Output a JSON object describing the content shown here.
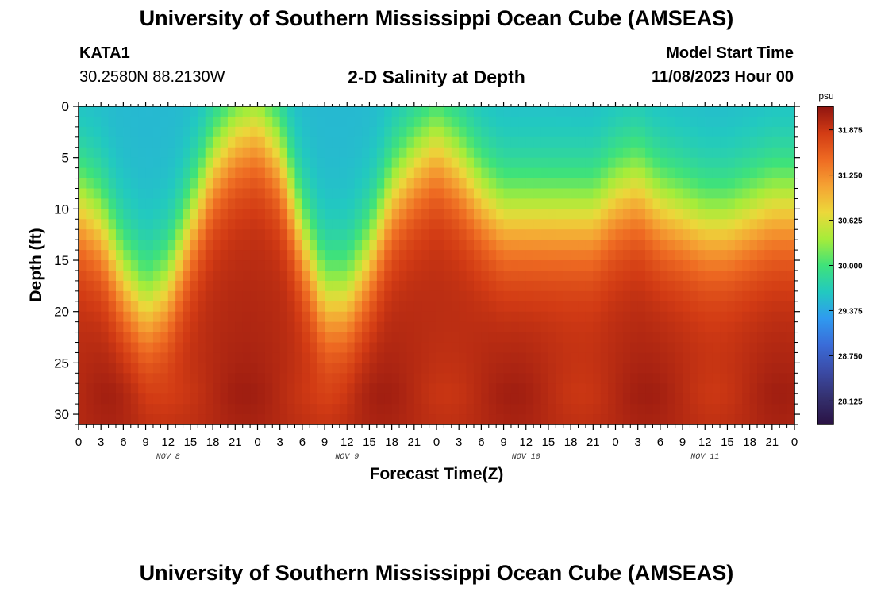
{
  "page": {
    "title_top": "University of Southern Mississippi Ocean Cube (AMSEAS)",
    "title_bottom": "University of Southern Mississippi Ocean Cube (AMSEAS)"
  },
  "header": {
    "station": "KATA1",
    "coords": "30.2580N  88.2130W",
    "chart_title": "2-D Salinity at Depth",
    "model_label": "Model Start Time",
    "model_start": "11/08/2023 Hour 00"
  },
  "colors": {
    "ramp": [
      "#2a1244",
      "#34306e",
      "#3b4ba6",
      "#3a6cd8",
      "#2f9af0",
      "#22c9c0",
      "#3fe27a",
      "#a6ec3a",
      "#ecd83a",
      "#f5a233",
      "#ee6a22",
      "#d23b14",
      "#8f1410"
    ]
  },
  "chart_data": {
    "type": "heatmap",
    "title": "2-D Salinity at Depth",
    "xlabel": "Forecast Time(Z)",
    "ylabel": "Depth (ft)",
    "xlim": [
      0,
      96
    ],
    "ylim": [
      0,
      31
    ],
    "x_ticks": [
      {
        "t": 0,
        "label": "0"
      },
      {
        "t": 3,
        "label": "3"
      },
      {
        "t": 6,
        "label": "6"
      },
      {
        "t": 9,
        "label": "9"
      },
      {
        "t": 12,
        "label": "12"
      },
      {
        "t": 15,
        "label": "15"
      },
      {
        "t": 18,
        "label": "18"
      },
      {
        "t": 21,
        "label": "21"
      },
      {
        "t": 24,
        "label": "0"
      },
      {
        "t": 27,
        "label": "3"
      },
      {
        "t": 30,
        "label": "6"
      },
      {
        "t": 33,
        "label": "9"
      },
      {
        "t": 36,
        "label": "12"
      },
      {
        "t": 39,
        "label": "15"
      },
      {
        "t": 42,
        "label": "18"
      },
      {
        "t": 45,
        "label": "21"
      },
      {
        "t": 48,
        "label": "0"
      },
      {
        "t": 51,
        "label": "3"
      },
      {
        "t": 54,
        "label": "6"
      },
      {
        "t": 57,
        "label": "9"
      },
      {
        "t": 60,
        "label": "12"
      },
      {
        "t": 63,
        "label": "15"
      },
      {
        "t": 66,
        "label": "18"
      },
      {
        "t": 69,
        "label": "21"
      },
      {
        "t": 72,
        "label": "0"
      },
      {
        "t": 75,
        "label": "3"
      },
      {
        "t": 78,
        "label": "6"
      },
      {
        "t": 81,
        "label": "9"
      },
      {
        "t": 84,
        "label": "12"
      },
      {
        "t": 87,
        "label": "15"
      },
      {
        "t": 90,
        "label": "18"
      },
      {
        "t": 93,
        "label": "21"
      },
      {
        "t": 96,
        "label": "0"
      }
    ],
    "date_labels": [
      {
        "t": 12,
        "label": "NOV 8"
      },
      {
        "t": 36,
        "label": "NOV 9"
      },
      {
        "t": 60,
        "label": "NOV 10"
      },
      {
        "t": 84,
        "label": "NOV 11"
      }
    ],
    "y_ticks": [
      0,
      5,
      10,
      15,
      20,
      25,
      30
    ],
    "colorbar": {
      "unit": "psu",
      "min": 27.8,
      "max": 32.2,
      "labels": [
        "31.875",
        "31.250",
        "30.625",
        "30.000",
        "29.375",
        "28.750",
        "28.125"
      ]
    },
    "salinity_profile": {
      "bottom_psu": 32.0,
      "surface_fresh_psu": 29.5,
      "interface_depth_ft": [
        {
          "t": 0,
          "d": 10
        },
        {
          "t": 3,
          "d": 12
        },
        {
          "t": 6,
          "d": 17
        },
        {
          "t": 9,
          "d": 20
        },
        {
          "t": 12,
          "d": 18
        },
        {
          "t": 15,
          "d": 12
        },
        {
          "t": 18,
          "d": 6
        },
        {
          "t": 21,
          "d": 3
        },
        {
          "t": 24,
          "d": 2
        },
        {
          "t": 27,
          "d": 5
        },
        {
          "t": 30,
          "d": 13
        },
        {
          "t": 33,
          "d": 19
        },
        {
          "t": 36,
          "d": 19
        },
        {
          "t": 39,
          "d": 15
        },
        {
          "t": 42,
          "d": 9
        },
        {
          "t": 45,
          "d": 6
        },
        {
          "t": 48,
          "d": 4
        },
        {
          "t": 51,
          "d": 6
        },
        {
          "t": 54,
          "d": 9
        },
        {
          "t": 57,
          "d": 11
        },
        {
          "t": 60,
          "d": 11
        },
        {
          "t": 63,
          "d": 11
        },
        {
          "t": 66,
          "d": 11
        },
        {
          "t": 69,
          "d": 11
        },
        {
          "t": 72,
          "d": 9
        },
        {
          "t": 75,
          "d": 8
        },
        {
          "t": 78,
          "d": 10
        },
        {
          "t": 81,
          "d": 11
        },
        {
          "t": 84,
          "d": 12
        },
        {
          "t": 87,
          "d": 12
        },
        {
          "t": 90,
          "d": 11
        },
        {
          "t": 93,
          "d": 10
        },
        {
          "t": 96,
          "d": 10
        }
      ]
    }
  }
}
